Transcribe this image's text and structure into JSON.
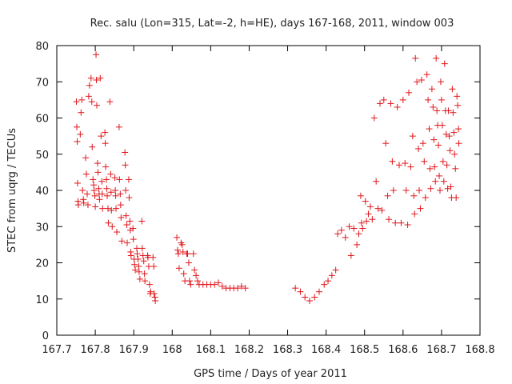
{
  "chart_data": {
    "type": "scatter",
    "title": "Rec. salu (Lon=315, Lat=-2, h=HE), days 167-168, 2011, window 003",
    "xlabel": "GPS time / Days of year 2011",
    "ylabel": "STEC from uqrg / TECUs",
    "xlim": [
      167.7,
      168.8
    ],
    "ylim": [
      0,
      80
    ],
    "xticks": [
      167.7,
      167.8,
      167.9,
      168.0,
      168.1,
      168.2,
      168.3,
      168.4,
      168.5,
      168.6,
      168.7,
      168.8
    ],
    "xtick_labels": [
      "167.7",
      "167.8",
      "167.9",
      "168",
      "168.1",
      "168.2",
      "168.3",
      "168.4",
      "168.5",
      "168.6",
      "168.7",
      "168.8"
    ],
    "yticks": [
      0,
      10,
      20,
      30,
      40,
      50,
      60,
      70,
      80
    ],
    "ytick_labels": [
      "0",
      "10",
      "20",
      "30",
      "40",
      "50",
      "60",
      "70",
      "80"
    ],
    "grid": false,
    "marker": "+",
    "color": "#e0161b",
    "points": [
      [
        167.751,
        64.5
      ],
      [
        167.752,
        57.5
      ],
      [
        167.753,
        53.5
      ],
      [
        167.754,
        42.0
      ],
      [
        167.755,
        37.0
      ],
      [
        167.756,
        36.0
      ],
      [
        167.761,
        55.5
      ],
      [
        167.763,
        61.5
      ],
      [
        167.765,
        65.0
      ],
      [
        167.767,
        40.0
      ],
      [
        167.769,
        37.5
      ],
      [
        167.77,
        36.5
      ],
      [
        167.775,
        49.0
      ],
      [
        167.777,
        44.5
      ],
      [
        167.779,
        39.0
      ],
      [
        167.781,
        36.0
      ],
      [
        167.783,
        66.0
      ],
      [
        167.785,
        69.0
      ],
      [
        167.789,
        71.0
      ],
      [
        167.791,
        64.5
      ],
      [
        167.792,
        52.0
      ],
      [
        167.794,
        43.0
      ],
      [
        167.796,
        41.5
      ],
      [
        167.797,
        40.0
      ],
      [
        167.799,
        38.5
      ],
      [
        167.8,
        35.5
      ],
      [
        167.802,
        77.5
      ],
      [
        167.803,
        70.5
      ],
      [
        167.804,
        63.5
      ],
      [
        167.806,
        47.5
      ],
      [
        167.807,
        45.0
      ],
      [
        167.809,
        40.5
      ],
      [
        167.81,
        39.0
      ],
      [
        167.811,
        37.5
      ],
      [
        167.813,
        71.0
      ],
      [
        167.815,
        55.0
      ],
      [
        167.817,
        42.5
      ],
      [
        167.818,
        39.0
      ],
      [
        167.819,
        35.0
      ],
      [
        167.825,
        56.0
      ],
      [
        167.826,
        53.0
      ],
      [
        167.827,
        46.5
      ],
      [
        167.829,
        43.0
      ],
      [
        167.83,
        40.5
      ],
      [
        167.831,
        38.5
      ],
      [
        167.833,
        35.0
      ],
      [
        167.834,
        31.0
      ],
      [
        167.838,
        64.5
      ],
      [
        167.84,
        44.5
      ],
      [
        167.841,
        39.5
      ],
      [
        167.842,
        34.5
      ],
      [
        167.844,
        30.0
      ],
      [
        167.851,
        43.5
      ],
      [
        167.852,
        40.0
      ],
      [
        167.853,
        38.5
      ],
      [
        167.854,
        35.0
      ],
      [
        167.856,
        28.5
      ],
      [
        167.862,
        57.5
      ],
      [
        167.863,
        43.0
      ],
      [
        167.865,
        39.0
      ],
      [
        167.866,
        36.0
      ],
      [
        167.867,
        32.5
      ],
      [
        167.869,
        26.0
      ],
      [
        167.877,
        50.5
      ],
      [
        167.878,
        47.0
      ],
      [
        167.879,
        40.0
      ],
      [
        167.88,
        33.0
      ],
      [
        167.882,
        30.5
      ],
      [
        167.883,
        25.5
      ],
      [
        167.887,
        43.0
      ],
      [
        167.888,
        38.0
      ],
      [
        167.89,
        31.5
      ],
      [
        167.891,
        29.0
      ],
      [
        167.892,
        23.0
      ],
      [
        167.893,
        22.0
      ],
      [
        167.898,
        29.5
      ],
      [
        167.899,
        26.5
      ],
      [
        167.901,
        21.0
      ],
      [
        167.902,
        19.5
      ],
      [
        167.904,
        18.0
      ],
      [
        167.908,
        24.0
      ],
      [
        167.909,
        22.5
      ],
      [
        167.911,
        21.0
      ],
      [
        167.913,
        19.0
      ],
      [
        167.914,
        17.5
      ],
      [
        167.916,
        15.5
      ],
      [
        167.921,
        31.5
      ],
      [
        167.922,
        24.0
      ],
      [
        167.924,
        22.0
      ],
      [
        167.926,
        20.5
      ],
      [
        167.928,
        17.0
      ],
      [
        167.929,
        15.0
      ],
      [
        167.936,
        22.0
      ],
      [
        167.937,
        21.5
      ],
      [
        167.939,
        19.0
      ],
      [
        167.941,
        14.0
      ],
      [
        167.943,
        11.5
      ],
      [
        167.944,
        12.0
      ],
      [
        167.95,
        21.5
      ],
      [
        167.952,
        19.0
      ],
      [
        167.953,
        11.5
      ],
      [
        167.955,
        10.5
      ],
      [
        167.956,
        9.5
      ],
      [
        168.012,
        27.0
      ],
      [
        168.014,
        23.5
      ],
      [
        168.016,
        22.5
      ],
      [
        168.018,
        18.5
      ],
      [
        168.023,
        25.5
      ],
      [
        168.026,
        25.0
      ],
      [
        168.028,
        23.0
      ],
      [
        168.03,
        17.0
      ],
      [
        168.033,
        15.0
      ],
      [
        168.038,
        22.5
      ],
      [
        168.04,
        22.5
      ],
      [
        168.043,
        20.0
      ],
      [
        168.045,
        15.0
      ],
      [
        168.048,
        14.0
      ],
      [
        168.055,
        22.5
      ],
      [
        168.058,
        18.0
      ],
      [
        168.062,
        16.5
      ],
      [
        168.066,
        15.0
      ],
      [
        168.07,
        14.0
      ],
      [
        168.08,
        14.0
      ],
      [
        168.09,
        14.0
      ],
      [
        168.1,
        14.0
      ],
      [
        168.11,
        14.0
      ],
      [
        168.12,
        14.5
      ],
      [
        168.13,
        13.5
      ],
      [
        168.14,
        13.0
      ],
      [
        168.15,
        13.0
      ],
      [
        168.16,
        13.0
      ],
      [
        168.17,
        13.0
      ],
      [
        168.18,
        13.5
      ],
      [
        168.19,
        13.0
      ],
      [
        168.32,
        13.0
      ],
      [
        168.333,
        12.0
      ],
      [
        168.345,
        10.5
      ],
      [
        168.357,
        9.5
      ],
      [
        168.37,
        10.5
      ],
      [
        168.382,
        12.0
      ],
      [
        168.395,
        14.0
      ],
      [
        168.405,
        15.0
      ],
      [
        168.415,
        16.5
      ],
      [
        168.425,
        18.0
      ],
      [
        168.43,
        28.0
      ],
      [
        168.44,
        29.0
      ],
      [
        168.45,
        27.0
      ],
      [
        168.46,
        30.0
      ],
      [
        168.465,
        22.0
      ],
      [
        168.472,
        29.5
      ],
      [
        168.48,
        25.0
      ],
      [
        168.485,
        28.0
      ],
      [
        168.49,
        38.5
      ],
      [
        168.492,
        31.0
      ],
      [
        168.495,
        29.5
      ],
      [
        168.502,
        37.0
      ],
      [
        168.505,
        31.5
      ],
      [
        168.51,
        33.5
      ],
      [
        168.515,
        35.5
      ],
      [
        168.52,
        32.0
      ],
      [
        168.525,
        60.0
      ],
      [
        168.53,
        42.5
      ],
      [
        168.535,
        35.0
      ],
      [
        168.54,
        64.0
      ],
      [
        168.545,
        34.5
      ],
      [
        168.55,
        65.0
      ],
      [
        168.555,
        53.0
      ],
      [
        168.56,
        38.5
      ],
      [
        168.563,
        32.0
      ],
      [
        168.568,
        64.0
      ],
      [
        168.572,
        48.0
      ],
      [
        168.575,
        40.0
      ],
      [
        168.58,
        31.0
      ],
      [
        168.585,
        63.0
      ],
      [
        168.59,
        47.0
      ],
      [
        168.595,
        31.0
      ],
      [
        168.6,
        65.0
      ],
      [
        168.605,
        47.5
      ],
      [
        168.608,
        40.0
      ],
      [
        168.612,
        30.5
      ],
      [
        168.615,
        67.0
      ],
      [
        168.62,
        46.5
      ],
      [
        168.625,
        55.0
      ],
      [
        168.628,
        38.5
      ],
      [
        168.63,
        33.5
      ],
      [
        168.632,
        76.5
      ],
      [
        168.636,
        70.0
      ],
      [
        168.64,
        51.5
      ],
      [
        168.642,
        40.0
      ],
      [
        168.645,
        35.0
      ],
      [
        168.648,
        70.5
      ],
      [
        168.652,
        53.0
      ],
      [
        168.655,
        48.0
      ],
      [
        168.658,
        38.0
      ],
      [
        168.662,
        72.0
      ],
      [
        168.665,
        65.0
      ],
      [
        168.668,
        57.0
      ],
      [
        168.67,
        46.0
      ],
      [
        168.672,
        40.5
      ],
      [
        168.675,
        68.0
      ],
      [
        168.678,
        63.0
      ],
      [
        168.68,
        54.0
      ],
      [
        168.682,
        46.5
      ],
      [
        168.684,
        42.5
      ],
      [
        168.686,
        76.5
      ],
      [
        168.688,
        62.0
      ],
      [
        168.69,
        58.0
      ],
      [
        168.692,
        52.5
      ],
      [
        168.694,
        44.0
      ],
      [
        168.696,
        40.0
      ],
      [
        168.698,
        70.0
      ],
      [
        168.7,
        65.0
      ],
      [
        168.702,
        58.0
      ],
      [
        168.704,
        48.0
      ],
      [
        168.706,
        42.5
      ],
      [
        168.708,
        75.0
      ],
      [
        168.71,
        62.0
      ],
      [
        168.712,
        55.5
      ],
      [
        168.714,
        47.0
      ],
      [
        168.716,
        40.5
      ],
      [
        168.718,
        62.0
      ],
      [
        168.72,
        55.0
      ],
      [
        168.722,
        51.0
      ],
      [
        168.724,
        41.0
      ],
      [
        168.726,
        38.0
      ],
      [
        168.728,
        68.0
      ],
      [
        168.73,
        61.5
      ],
      [
        168.732,
        56.0
      ],
      [
        168.734,
        50.0
      ],
      [
        168.736,
        46.0
      ],
      [
        168.738,
        38.0
      ],
      [
        168.74,
        66.0
      ],
      [
        168.742,
        63.5
      ],
      [
        168.744,
        57.0
      ],
      [
        168.745,
        53.0
      ]
    ]
  }
}
